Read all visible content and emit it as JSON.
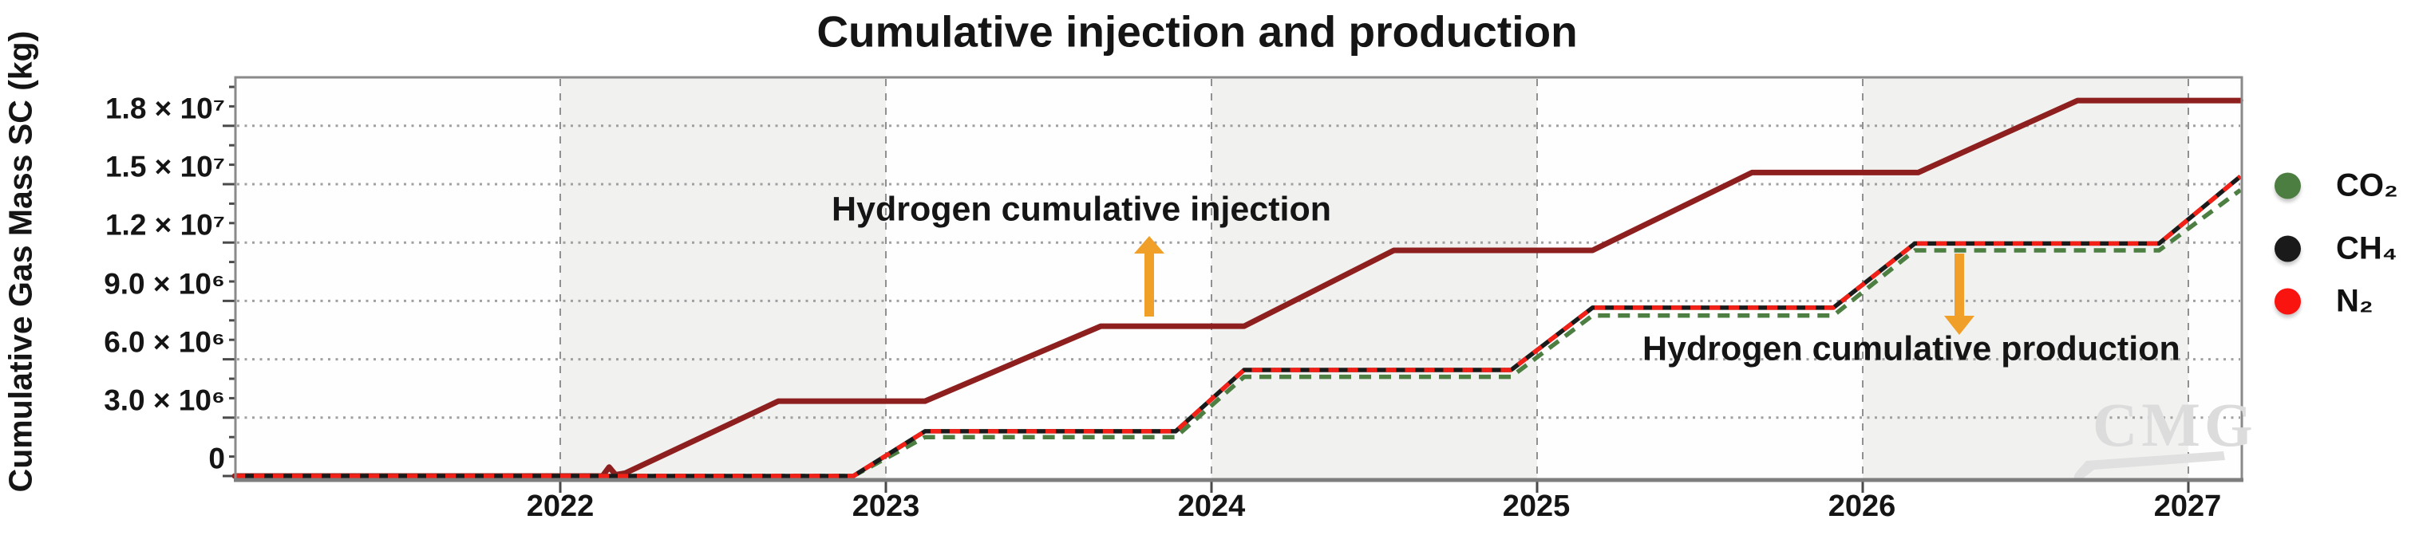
{
  "title": "Cumulative injection and production",
  "y_axis": {
    "title": "Cumulative Gas Mass SC (kg)",
    "tick_labels": [
      "1.8 × 10⁷",
      "1.5 × 10⁷",
      "1.2 × 10⁷",
      "9.0 × 10⁶",
      "6.0 × 10⁶",
      "3.0 × 10⁶",
      "0"
    ]
  },
  "x_axis": {
    "tick_labels": [
      "2022",
      "2023",
      "2024",
      "2025",
      "2026",
      "2027"
    ]
  },
  "annotations": {
    "injection": "Hydrogen cumulative injection",
    "production": "Hydrogen cumulative production"
  },
  "legend": [
    {
      "label": "CO₂",
      "color": "#4c7d41"
    },
    {
      "label": "CH₄",
      "color": "#1a1a1a"
    },
    {
      "label": "N₂",
      "color": "#fa1410"
    }
  ],
  "watermark": "CMG",
  "colors": {
    "injection_line": "#8e1f1f",
    "co2_line": "#4d7f43",
    "ch4_line": "#1a1a1a",
    "n2_line": "#f22016",
    "annotation_arrow": "#f0a028",
    "band_fill": "#f1f1ef",
    "grid_dotted": "#a0a0a0",
    "grid_dashed": "#909090",
    "frame": "#8a8a8a"
  },
  "chart_data": {
    "type": "line",
    "title": "Cumulative injection and production",
    "xlabel": "",
    "ylabel": "Cumulative Gas Mass SC (kg)",
    "xlim": [
      2021.0,
      2027.16
    ],
    "ylim": [
      0,
      20600000
    ],
    "x_ticks": [
      2022,
      2023,
      2024,
      2025,
      2026,
      2027
    ],
    "y_ticks": [
      0,
      3000000,
      6000000,
      9000000,
      12000000,
      15000000,
      18000000
    ],
    "grid": true,
    "legend_position": "right",
    "gray_band_year_spans": [
      [
        2022,
        2023
      ],
      [
        2024,
        2025
      ],
      [
        2026,
        2027
      ]
    ],
    "series": [
      {
        "id": "injection",
        "name": "Hydrogen cumulative injection",
        "color": "#8e1f1f",
        "style": "solid",
        "points": [
          [
            2021.0,
            0
          ],
          [
            2022.13,
            0
          ],
          [
            2022.15,
            460000
          ],
          [
            2022.17,
            60000
          ],
          [
            2022.2,
            150000
          ],
          [
            2022.67,
            3850000
          ],
          [
            2023.12,
            3850000
          ],
          [
            2023.66,
            7700000
          ],
          [
            2024.1,
            7700000
          ],
          [
            2024.56,
            11600000
          ],
          [
            2025.17,
            11600000
          ],
          [
            2025.66,
            15600000
          ],
          [
            2026.17,
            15600000
          ],
          [
            2026.66,
            19300000
          ],
          [
            2027.16,
            19300000
          ]
        ]
      },
      {
        "id": "co2",
        "name": "CO₂ cumulative production",
        "color": "#4d7f43",
        "style": "dashed",
        "points": [
          [
            2021.0,
            0
          ],
          [
            2022.9,
            0
          ],
          [
            2023.12,
            2000000
          ],
          [
            2023.89,
            2000000
          ],
          [
            2024.1,
            5100000
          ],
          [
            2024.92,
            5100000
          ],
          [
            2025.17,
            8250000
          ],
          [
            2025.91,
            8250000
          ],
          [
            2026.16,
            11600000
          ],
          [
            2026.91,
            11600000
          ],
          [
            2027.16,
            14700000
          ]
        ]
      },
      {
        "id": "ch4",
        "name": "CH₄ cumulative production",
        "color": "#1a1a1a",
        "style": "solid",
        "points": [
          [
            2021.0,
            0
          ],
          [
            2022.9,
            0
          ],
          [
            2023.12,
            2300000
          ],
          [
            2023.89,
            2300000
          ],
          [
            2024.1,
            5450000
          ],
          [
            2024.92,
            5450000
          ],
          [
            2025.17,
            8650000
          ],
          [
            2025.91,
            8650000
          ],
          [
            2026.16,
            11950000
          ],
          [
            2026.91,
            11950000
          ],
          [
            2027.16,
            15400000
          ]
        ]
      },
      {
        "id": "n2",
        "name": "N₂ cumulative production",
        "color": "#f22016",
        "style": "dashed",
        "points": [
          [
            2021.0,
            0
          ],
          [
            2022.9,
            0
          ],
          [
            2023.12,
            2300000
          ],
          [
            2023.89,
            2300000
          ],
          [
            2024.1,
            5450000
          ],
          [
            2024.92,
            5450000
          ],
          [
            2025.17,
            8650000
          ],
          [
            2025.91,
            8650000
          ],
          [
            2026.16,
            11950000
          ],
          [
            2026.91,
            11950000
          ],
          [
            2027.16,
            15400000
          ]
        ]
      }
    ]
  }
}
